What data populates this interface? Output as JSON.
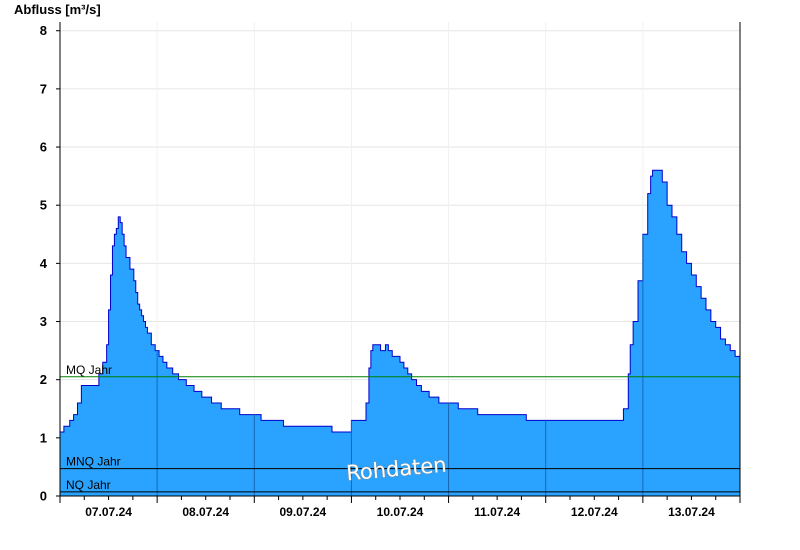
{
  "chart_data": {
    "type": "area",
    "ylabel": "Abfluss [m³/s]",
    "ylim": [
      0,
      8.15
    ],
    "yticks": [
      0,
      1,
      2,
      3,
      4,
      5,
      6,
      7,
      8
    ],
    "x_tick_labels": [
      "07.07.24",
      "08.07.24",
      "09.07.24",
      "10.07.24",
      "11.07.24",
      "12.07.24",
      "13.07.24"
    ],
    "xlim_days": [
      0,
      7
    ],
    "grid": true,
    "watermark": "Rohdaten",
    "fill_color": "#29a3ff",
    "line_color": "#0000cc",
    "reference_lines": [
      {
        "label": "MQ Jahr",
        "value": 2.05,
        "color": "#008000"
      },
      {
        "label": "MNQ Jahr",
        "value": 0.47,
        "color": "#000000"
      },
      {
        "label": "NQ Jahr",
        "value": 0.07,
        "color": "#000000"
      }
    ],
    "series": [
      {
        "x": [
          0,
          0.04,
          0.1,
          0.14,
          0.18,
          0.22,
          0.4,
          0.44,
          0.48,
          0.5,
          0.52,
          0.54,
          0.56,
          0.58,
          0.6,
          0.62,
          0.64,
          0.66,
          0.68,
          0.72,
          0.76,
          0.78,
          0.8,
          0.82,
          0.84,
          0.86,
          0.88,
          0.9,
          0.94,
          0.98,
          1.02,
          1.06,
          1.1,
          1.16,
          1.22,
          1.3,
          1.38,
          1.46,
          1.56,
          1.66,
          1.85,
          2.07,
          2.3,
          2.5,
          2.8,
          3.0,
          3.15,
          3.18,
          3.2,
          3.22,
          3.25,
          3.3,
          3.35,
          3.38,
          3.42,
          3.5,
          3.54,
          3.58,
          3.62,
          3.67,
          3.72,
          3.8,
          3.9,
          4.0,
          4.1,
          4.3,
          4.5,
          4.6,
          4.8,
          4.9,
          5.0,
          5.2,
          5.4,
          5.5,
          5.8,
          5.85,
          5.87,
          5.9,
          5.95,
          6.0,
          6.05,
          6.08,
          6.1,
          6.14,
          6.2,
          6.25,
          6.3,
          6.35,
          6.4,
          6.45,
          6.5,
          6.55,
          6.6,
          6.65,
          6.7,
          6.75,
          6.8,
          6.85,
          6.9,
          6.95,
          7.0
        ],
        "y": [
          1.1,
          1.2,
          1.3,
          1.4,
          1.6,
          1.9,
          2.1,
          2.3,
          2.6,
          3.2,
          3.8,
          4.3,
          4.5,
          4.6,
          4.8,
          4.7,
          4.5,
          4.3,
          4.1,
          3.9,
          3.7,
          3.5,
          3.3,
          3.2,
          3.1,
          3.0,
          2.9,
          2.8,
          2.6,
          2.5,
          2.4,
          2.3,
          2.2,
          2.1,
          2.0,
          1.9,
          1.8,
          1.7,
          1.6,
          1.5,
          1.4,
          1.3,
          1.2,
          1.2,
          1.1,
          1.3,
          1.6,
          2.2,
          2.5,
          2.6,
          2.6,
          2.5,
          2.6,
          2.5,
          2.4,
          2.3,
          2.2,
          2.1,
          2.0,
          1.9,
          1.8,
          1.7,
          1.6,
          1.6,
          1.5,
          1.4,
          1.4,
          1.4,
          1.3,
          1.3,
          1.3,
          1.3,
          1.3,
          1.3,
          1.5,
          2.1,
          2.6,
          3.0,
          3.7,
          4.5,
          5.2,
          5.5,
          5.6,
          5.6,
          5.4,
          5.0,
          4.8,
          4.5,
          4.2,
          4.0,
          3.8,
          3.6,
          3.4,
          3.2,
          3.0,
          2.9,
          2.7,
          2.6,
          2.5,
          2.4,
          2.3
        ]
      }
    ]
  }
}
